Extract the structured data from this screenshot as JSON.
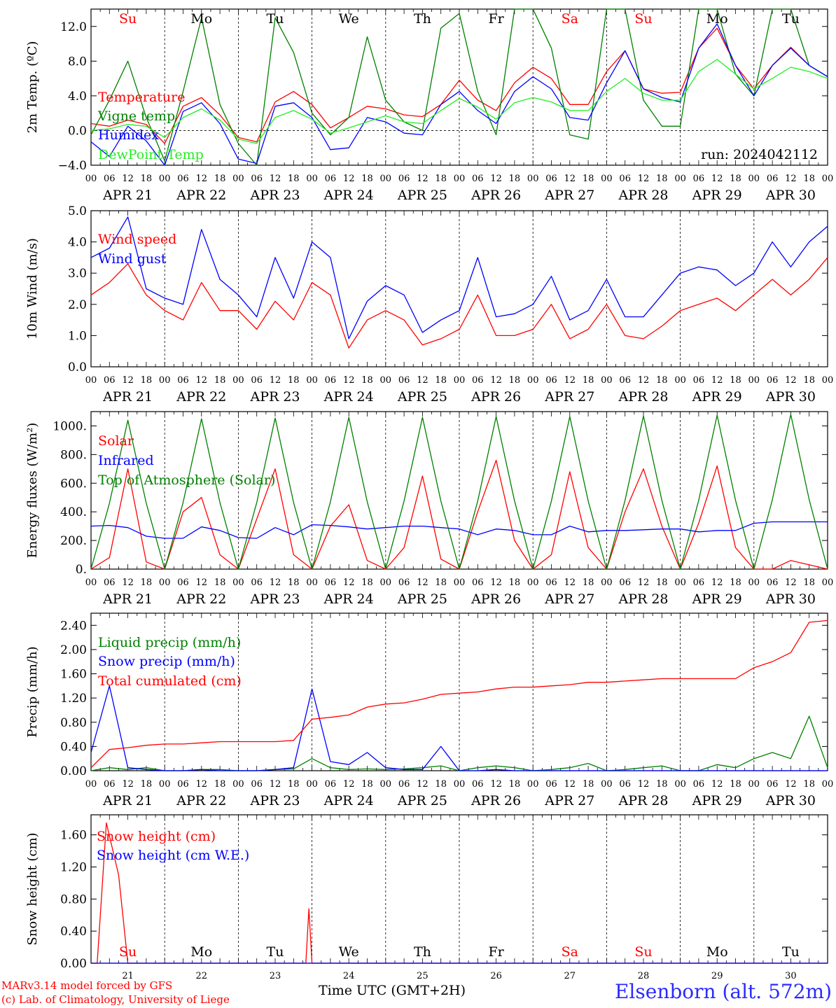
{
  "run_label": "run: 2024042112",
  "footer": {
    "model": "MARv3.14 model forced by GFS",
    "credit": "(c) Lab. of Climatology, University of Liege",
    "xlabel": "Time UTC (GMT+2H)",
    "station": "Elsenborn (alt. 572m)"
  },
  "days": [
    "Su",
    "Mo",
    "Tu",
    "We",
    "Th",
    "Fr",
    "Sa",
    "Su",
    "Mo",
    "Tu"
  ],
  "dates": [
    "APR 21",
    "APR 22",
    "APR 23",
    "APR 24",
    "APR 25",
    "APR 26",
    "APR 27",
    "APR 28",
    "APR 29",
    "APR 30"
  ],
  "day_numbers": [
    "21",
    "22",
    "23",
    "24",
    "25",
    "26",
    "27",
    "28",
    "29",
    "30"
  ],
  "hour_ticks": [
    "00",
    "06",
    "12",
    "18"
  ],
  "colors": {
    "red": "#ff0000",
    "green": "#008000",
    "blue": "#0000ff",
    "lightgreen": "#22ee22"
  },
  "chart_data": [
    {
      "type": "line",
      "ylabel": "2m Temp. (ºC)",
      "ylim": [
        -4,
        14
      ],
      "yticks": [
        -4,
        0,
        4,
        8,
        12
      ],
      "ytick_labels": [
        "−4.0",
        "0.0",
        "4.0",
        "8.0",
        "12.0"
      ],
      "ref_lines": [
        0
      ],
      "x": [
        0,
        6,
        12,
        18,
        24,
        30,
        36,
        42,
        48,
        54,
        60,
        66,
        72,
        78,
        84,
        90,
        96,
        102,
        108,
        114,
        120,
        126,
        132,
        138,
        144,
        150,
        156,
        162,
        168,
        174,
        180,
        186,
        192,
        198,
        204,
        210,
        216,
        222,
        228,
        234,
        240
      ],
      "series": [
        {
          "name": "Temperature",
          "color": "#ff0000",
          "values": [
            0.8,
            0.5,
            1.2,
            0.7,
            -1.5,
            2.8,
            3.8,
            1.8,
            -0.8,
            -1.3,
            3.3,
            4.5,
            3.0,
            0.3,
            1.5,
            2.8,
            2.5,
            1.8,
            1.6,
            3.0,
            5.8,
            3.5,
            2.3,
            5.5,
            7.3,
            6.0,
            3.0,
            3.0,
            6.8,
            9.2,
            4.8,
            4.3,
            4.4,
            9.5,
            11.8,
            7.5,
            4.8,
            7.5,
            9.6,
            7.5,
            6.2
          ]
        },
        {
          "name": "Vigne temp",
          "color": "#008000",
          "values": [
            -0.5,
            3.5,
            8.0,
            1.5,
            -3.5,
            4.5,
            13.0,
            3.0,
            -1.5,
            -4.0,
            13.0,
            9.0,
            2.0,
            -0.5,
            1.5,
            10.8,
            3.5,
            1.0,
            0.0,
            11.8,
            13.5,
            4.5,
            -0.5,
            14.0,
            14.0,
            9.5,
            -0.5,
            -1.0,
            14.0,
            14.0,
            3.5,
            0.5,
            0.5,
            14.0,
            14.0,
            6.5,
            4.0,
            14.0,
            14.0,
            7.5,
            6.2
          ]
        },
        {
          "name": "Humidex",
          "color": "#0000ff",
          "values": [
            -1.3,
            -3.0,
            0.5,
            -1.2,
            -4.0,
            2.2,
            3.2,
            0.8,
            -3.3,
            -3.8,
            2.8,
            3.2,
            1.5,
            -2.2,
            -2.0,
            1.5,
            1.0,
            -0.3,
            -0.5,
            3.0,
            4.5,
            2.3,
            0.8,
            4.5,
            6.2,
            4.8,
            1.5,
            1.2,
            5.5,
            9.2,
            4.8,
            3.8,
            3.3,
            9.5,
            12.3,
            7.5,
            4.0,
            7.5,
            9.5,
            7.5,
            6.2
          ]
        },
        {
          "name": "DewPoint Temp",
          "color": "#22ee22",
          "values": [
            0.0,
            0.2,
            0.7,
            0.5,
            -0.8,
            1.5,
            2.5,
            1.2,
            -1.0,
            -1.5,
            1.5,
            2.3,
            1.3,
            -0.3,
            0.3,
            1.0,
            1.7,
            1.0,
            0.8,
            2.3,
            3.7,
            2.7,
            1.3,
            3.2,
            3.8,
            3.3,
            2.3,
            2.3,
            4.5,
            6.0,
            4.3,
            3.5,
            3.5,
            6.8,
            8.2,
            6.5,
            4.8,
            6.0,
            7.3,
            6.8,
            6.0
          ]
        }
      ]
    },
    {
      "type": "line",
      "ylabel": "10m Wind (m/s)",
      "ylim": [
        0,
        5
      ],
      "yticks": [
        0,
        1,
        2,
        3,
        4,
        5
      ],
      "ytick_labels": [
        "0.0",
        "1.0",
        "2.0",
        "3.0",
        "4.0",
        "5.0"
      ],
      "ref_lines": [
        5
      ],
      "x": [
        0,
        6,
        12,
        18,
        24,
        30,
        36,
        42,
        48,
        54,
        60,
        66,
        72,
        78,
        84,
        90,
        96,
        102,
        108,
        114,
        120,
        126,
        132,
        138,
        144,
        150,
        156,
        162,
        168,
        174,
        180,
        186,
        192,
        198,
        204,
        210,
        216,
        222,
        228,
        234,
        240
      ],
      "series": [
        {
          "name": "Wind speed",
          "color": "#ff0000",
          "values": [
            2.3,
            2.7,
            3.3,
            2.3,
            1.8,
            1.5,
            2.7,
            1.8,
            1.8,
            1.2,
            2.1,
            1.5,
            2.7,
            2.3,
            0.6,
            1.5,
            1.8,
            1.5,
            0.7,
            0.9,
            1.2,
            2.3,
            1.0,
            1.0,
            1.2,
            2.0,
            0.9,
            1.2,
            2.0,
            1.0,
            0.9,
            1.3,
            1.8,
            2.0,
            2.2,
            1.8,
            2.3,
            2.8,
            2.3,
            2.8,
            3.5
          ]
        },
        {
          "name": "Wind gust",
          "color": "#0000ff",
          "values": [
            3.5,
            3.8,
            4.8,
            2.5,
            2.2,
            2.0,
            4.4,
            2.8,
            2.3,
            1.6,
            3.5,
            2.2,
            4.0,
            3.5,
            0.9,
            2.1,
            2.6,
            2.3,
            1.1,
            1.5,
            1.8,
            3.5,
            1.6,
            1.7,
            2.0,
            2.9,
            1.5,
            1.8,
            2.8,
            1.6,
            1.6,
            2.3,
            3.0,
            3.2,
            3.1,
            2.6,
            3.0,
            4.0,
            3.2,
            4.0,
            4.5
          ]
        }
      ]
    },
    {
      "type": "line",
      "ylabel": "Energy fluxes (W/m²)",
      "ylim": [
        0,
        1100
      ],
      "yticks": [
        0,
        200,
        400,
        600,
        800,
        1000
      ],
      "ytick_labels": [
        "0.",
        "200.",
        "400.",
        "600.",
        "800.",
        "1000."
      ],
      "x": [
        0,
        6,
        12,
        18,
        24,
        30,
        36,
        42,
        48,
        54,
        60,
        66,
        72,
        78,
        84,
        90,
        96,
        102,
        108,
        114,
        120,
        126,
        132,
        138,
        144,
        150,
        156,
        162,
        168,
        174,
        180,
        186,
        192,
        198,
        204,
        210,
        216,
        222,
        228,
        234,
        240
      ],
      "series": [
        {
          "name": "Solar",
          "color": "#ff0000",
          "values": [
            0,
            80,
            700,
            50,
            0,
            400,
            500,
            100,
            0,
            350,
            700,
            100,
            0,
            300,
            450,
            60,
            0,
            150,
            650,
            70,
            0,
            400,
            760,
            200,
            0,
            100,
            680,
            150,
            0,
            400,
            700,
            300,
            0,
            320,
            720,
            150,
            0,
            0,
            60,
            30,
            0
          ]
        },
        {
          "name": "Infrared",
          "color": "#0000ff",
          "values": [
            300,
            305,
            290,
            230,
            215,
            215,
            295,
            270,
            220,
            215,
            290,
            240,
            310,
            305,
            295,
            280,
            290,
            300,
            300,
            290,
            280,
            240,
            280,
            270,
            240,
            240,
            300,
            260,
            270,
            270,
            275,
            280,
            280,
            260,
            270,
            270,
            320,
            330,
            330,
            330,
            330
          ]
        },
        {
          "name": "Top of Atmosphere (Solar)",
          "color": "#008000",
          "values": [
            0,
            460,
            1040,
            460,
            0,
            465,
            1050,
            465,
            0,
            465,
            1055,
            465,
            0,
            470,
            1060,
            470,
            0,
            475,
            1060,
            475,
            0,
            475,
            1065,
            475,
            0,
            475,
            1065,
            475,
            0,
            480,
            1070,
            480,
            0,
            480,
            1075,
            480,
            0,
            485,
            1080,
            485,
            0
          ]
        }
      ]
    },
    {
      "type": "line",
      "ylabel": "Precip (mm/h)",
      "ylim": [
        0,
        2.6
      ],
      "yticks": [
        0,
        0.4,
        0.8,
        1.2,
        1.6,
        2.0,
        2.4
      ],
      "ytick_labels": [
        "0.00",
        "0.40",
        "0.80",
        "1.20",
        "1.60",
        "2.00",
        "2.40"
      ],
      "x": [
        0,
        6,
        12,
        18,
        24,
        30,
        36,
        42,
        48,
        54,
        60,
        66,
        72,
        78,
        84,
        90,
        96,
        102,
        108,
        114,
        120,
        126,
        132,
        138,
        144,
        150,
        156,
        162,
        168,
        174,
        180,
        186,
        192,
        198,
        204,
        210,
        216,
        222,
        228,
        234,
        240
      ],
      "series": [
        {
          "name": "Liquid precip (mm/h)",
          "color": "#008000",
          "values": [
            0,
            0.05,
            0.02,
            0.05,
            0,
            0,
            0.02,
            0.02,
            0,
            0,
            0.02,
            0.03,
            0.2,
            0.05,
            0.02,
            0.03,
            0.02,
            0.03,
            0.05,
            0.08,
            0,
            0.05,
            0.08,
            0.05,
            0,
            0.02,
            0.05,
            0.12,
            0,
            0.02,
            0.05,
            0.08,
            0,
            0,
            0.1,
            0.05,
            0.2,
            0.3,
            0.2,
            0.9,
            0.05
          ]
        },
        {
          "name": "Snow precip (mm/h)",
          "color": "#0000ff",
          "values": [
            0.3,
            1.4,
            0.05,
            0.02,
            0,
            0,
            0.02,
            0,
            0,
            0,
            0.02,
            0.05,
            1.35,
            0.15,
            0.1,
            0.3,
            0.05,
            0.02,
            0.02,
            0.4,
            0,
            0,
            0.02,
            0,
            0,
            0,
            0,
            0,
            0,
            0,
            0,
            0,
            0,
            0,
            0,
            0,
            0,
            0,
            0,
            0,
            0
          ]
        },
        {
          "name": "Total cumulated (cm)",
          "color": "#ff0000",
          "values": [
            0.05,
            0.35,
            0.38,
            0.42,
            0.44,
            0.44,
            0.46,
            0.48,
            0.48,
            0.48,
            0.48,
            0.5,
            0.85,
            0.88,
            0.92,
            1.05,
            1.1,
            1.12,
            1.18,
            1.26,
            1.28,
            1.3,
            1.35,
            1.38,
            1.38,
            1.4,
            1.42,
            1.46,
            1.46,
            1.48,
            1.5,
            1.52,
            1.52,
            1.52,
            1.52,
            1.52,
            1.7,
            1.8,
            1.95,
            2.45,
            2.48
          ]
        }
      ]
    },
    {
      "type": "line",
      "ylabel": "Snow height (cm)",
      "ylim": [
        0,
        1.85
      ],
      "yticks": [
        0,
        0.4,
        0.8,
        1.2,
        1.6
      ],
      "ytick_labels": [
        "0.00",
        "0.40",
        "0.80",
        "1.20",
        "1.60"
      ],
      "x": [
        0,
        2,
        5,
        9,
        12,
        24,
        60,
        70,
        71,
        72,
        240
      ],
      "series": [
        {
          "name": "Snow height (cm)",
          "color": "#ff0000",
          "values": [
            0,
            0,
            1.75,
            1.1,
            0,
            0,
            0,
            0,
            0.68,
            0,
            0
          ]
        },
        {
          "name": "Snow height (cm W.E.)",
          "color": "#0000ff",
          "values": [
            0,
            0,
            0,
            0,
            0,
            0,
            0,
            0,
            0,
            0,
            0
          ]
        }
      ]
    }
  ]
}
